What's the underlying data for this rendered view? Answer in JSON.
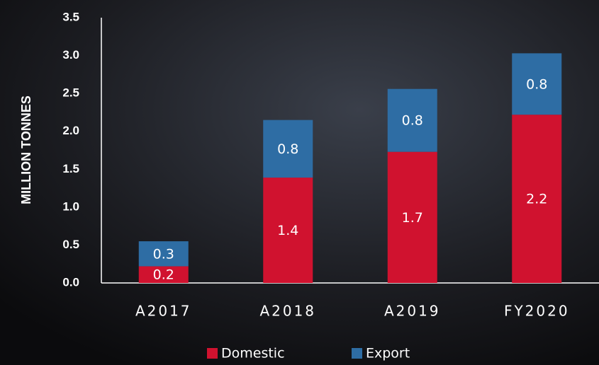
{
  "chart_data": {
    "type": "stacked_bar",
    "y_label": "MILLION TONNES",
    "categories": [
      "A2017",
      "A2018",
      "A2019",
      "FY2020"
    ],
    "series": [
      {
        "name": "Domestic",
        "color": "#d0122f",
        "values": [
          0.22,
          1.39,
          1.73,
          2.22
        ],
        "value_labels": [
          "0.2",
          "1.4",
          "1.7",
          "2.2"
        ]
      },
      {
        "name": "Export",
        "color": "#2e6da4",
        "values": [
          0.33,
          0.76,
          0.83,
          0.81
        ],
        "value_labels": [
          "0.3",
          "0.8",
          "0.8",
          "0.8"
        ]
      }
    ],
    "ylim": [
      0,
      3.5
    ],
    "yticks": [
      {
        "value": 0,
        "label": "0.0"
      },
      0.5,
      {
        "value": 1,
        "label": "1.0"
      },
      1.5,
      {
        "value": 2,
        "label": "2.0"
      },
      2.5,
      {
        "value": 3,
        "label": "3.0"
      },
      3.5
    ],
    "legend": "bottom"
  }
}
